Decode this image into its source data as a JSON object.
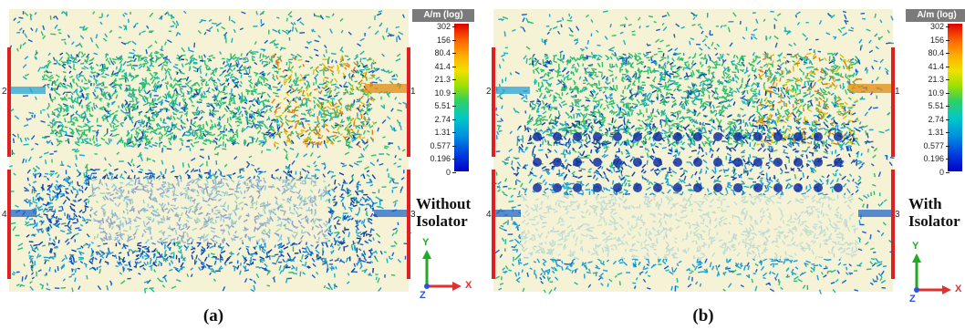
{
  "panels": [
    {
      "id": "a",
      "caption": "(a)",
      "label_line1": "Without",
      "label_line2": "Isolator",
      "port_labels": [
        "2",
        "1",
        "4",
        "3"
      ]
    },
    {
      "id": "b",
      "caption": "(b)",
      "label_line1": "With",
      "label_line2": "Isolator",
      "port_labels": [
        "2",
        "1",
        "4",
        "3"
      ]
    }
  ],
  "legend": {
    "unit": "A/m (log)",
    "ticks": [
      "302",
      "156",
      "80.4",
      "41.4",
      "21.3",
      "10.9",
      "5.51",
      "2.74",
      "1.31",
      "0.577",
      "0.196",
      "0"
    ]
  },
  "axes": {
    "y_label": "Y",
    "z_label": "Z",
    "x_label": "X",
    "y_color": "#22aa22",
    "x_color": "#e03030",
    "z_color": "#3050e0"
  }
}
